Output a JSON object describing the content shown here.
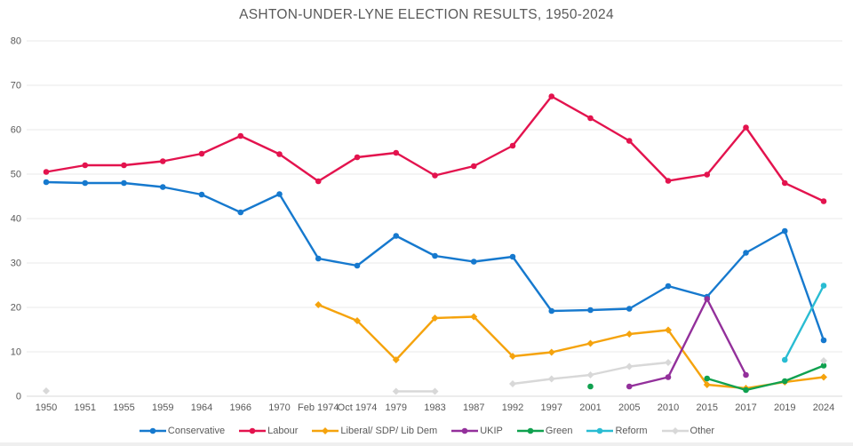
{
  "title": "ASHTON-UNDER-LYNE ELECTION RESULTS, 1950-2024",
  "axis": {
    "y_tick_labels": [
      "0",
      "10",
      "20",
      "30",
      "40",
      "50",
      "60",
      "70",
      "80"
    ],
    "grid": true
  },
  "chart_data": {
    "type": "line",
    "title": "ASHTON-UNDER-LYNE ELECTION RESULTS, 1950-2024",
    "xlabel": "",
    "ylabel": "",
    "ylim": [
      0,
      80
    ],
    "yticks": [
      0,
      10,
      20,
      30,
      40,
      50,
      60,
      70,
      80
    ],
    "grid": true,
    "legend_position": "bottom",
    "categories": [
      "1950",
      "1951",
      "1955",
      "1959",
      "1964",
      "1966",
      "1970",
      "Feb 1974",
      "Oct 1974",
      "1979",
      "1983",
      "1987",
      "1992",
      "1997",
      "2001",
      "2005",
      "2010",
      "2015",
      "2017",
      "2019",
      "2024"
    ],
    "series": [
      {
        "name": "Conservative",
        "color": "#1679CE",
        "marker": "circle",
        "values": [
          48.2,
          48.0,
          48.0,
          47.1,
          45.4,
          41.4,
          45.5,
          31.0,
          29.4,
          36.1,
          31.6,
          30.3,
          31.4,
          19.2,
          19.4,
          19.7,
          24.8,
          22.4,
          32.3,
          37.2,
          12.6
        ]
      },
      {
        "name": "Labour",
        "color": "#E3134E",
        "marker": "circle",
        "values": [
          50.5,
          52.0,
          52.0,
          52.9,
          54.6,
          58.6,
          54.5,
          48.4,
          53.8,
          54.8,
          49.7,
          51.8,
          56.4,
          67.5,
          62.6,
          57.5,
          48.5,
          49.9,
          60.5,
          48.0,
          43.9
        ]
      },
      {
        "name": "Liberal/ SDP/ Lib Dem",
        "color": "#F5A30D",
        "marker": "diamond",
        "values": [
          null,
          null,
          null,
          null,
          null,
          null,
          null,
          20.6,
          17.0,
          8.2,
          17.6,
          17.9,
          9.0,
          9.9,
          11.9,
          14.0,
          14.9,
          2.6,
          1.8,
          3.2,
          4.3
        ]
      },
      {
        "name": "UKIP",
        "color": "#93309B",
        "marker": "circle",
        "values": [
          null,
          null,
          null,
          null,
          null,
          null,
          null,
          null,
          null,
          null,
          null,
          null,
          null,
          null,
          null,
          2.2,
          4.3,
          21.9,
          4.8,
          null,
          null
        ]
      },
      {
        "name": "Green",
        "color": "#10A14F",
        "marker": "circle",
        "values": [
          null,
          null,
          null,
          null,
          null,
          null,
          null,
          null,
          null,
          null,
          null,
          null,
          null,
          null,
          2.2,
          null,
          null,
          4.0,
          1.4,
          3.4,
          6.9
        ]
      },
      {
        "name": "Reform",
        "color": "#29BCD2",
        "marker": "circle",
        "values": [
          null,
          null,
          null,
          null,
          null,
          null,
          null,
          null,
          null,
          null,
          null,
          null,
          null,
          null,
          null,
          null,
          null,
          null,
          null,
          8.2,
          24.9
        ]
      },
      {
        "name": "Other",
        "color": "#D8D8D8",
        "marker": "diamond",
        "values": [
          1.2,
          null,
          null,
          null,
          null,
          null,
          null,
          null,
          null,
          1.1,
          1.1,
          null,
          2.8,
          3.9,
          4.8,
          6.7,
          7.6,
          null,
          null,
          null,
          8.0
        ]
      }
    ]
  },
  "style": {
    "grid_color": "#e8e8e8",
    "axis_line_color": "#d9d9d9",
    "label_color": "#595959"
  }
}
